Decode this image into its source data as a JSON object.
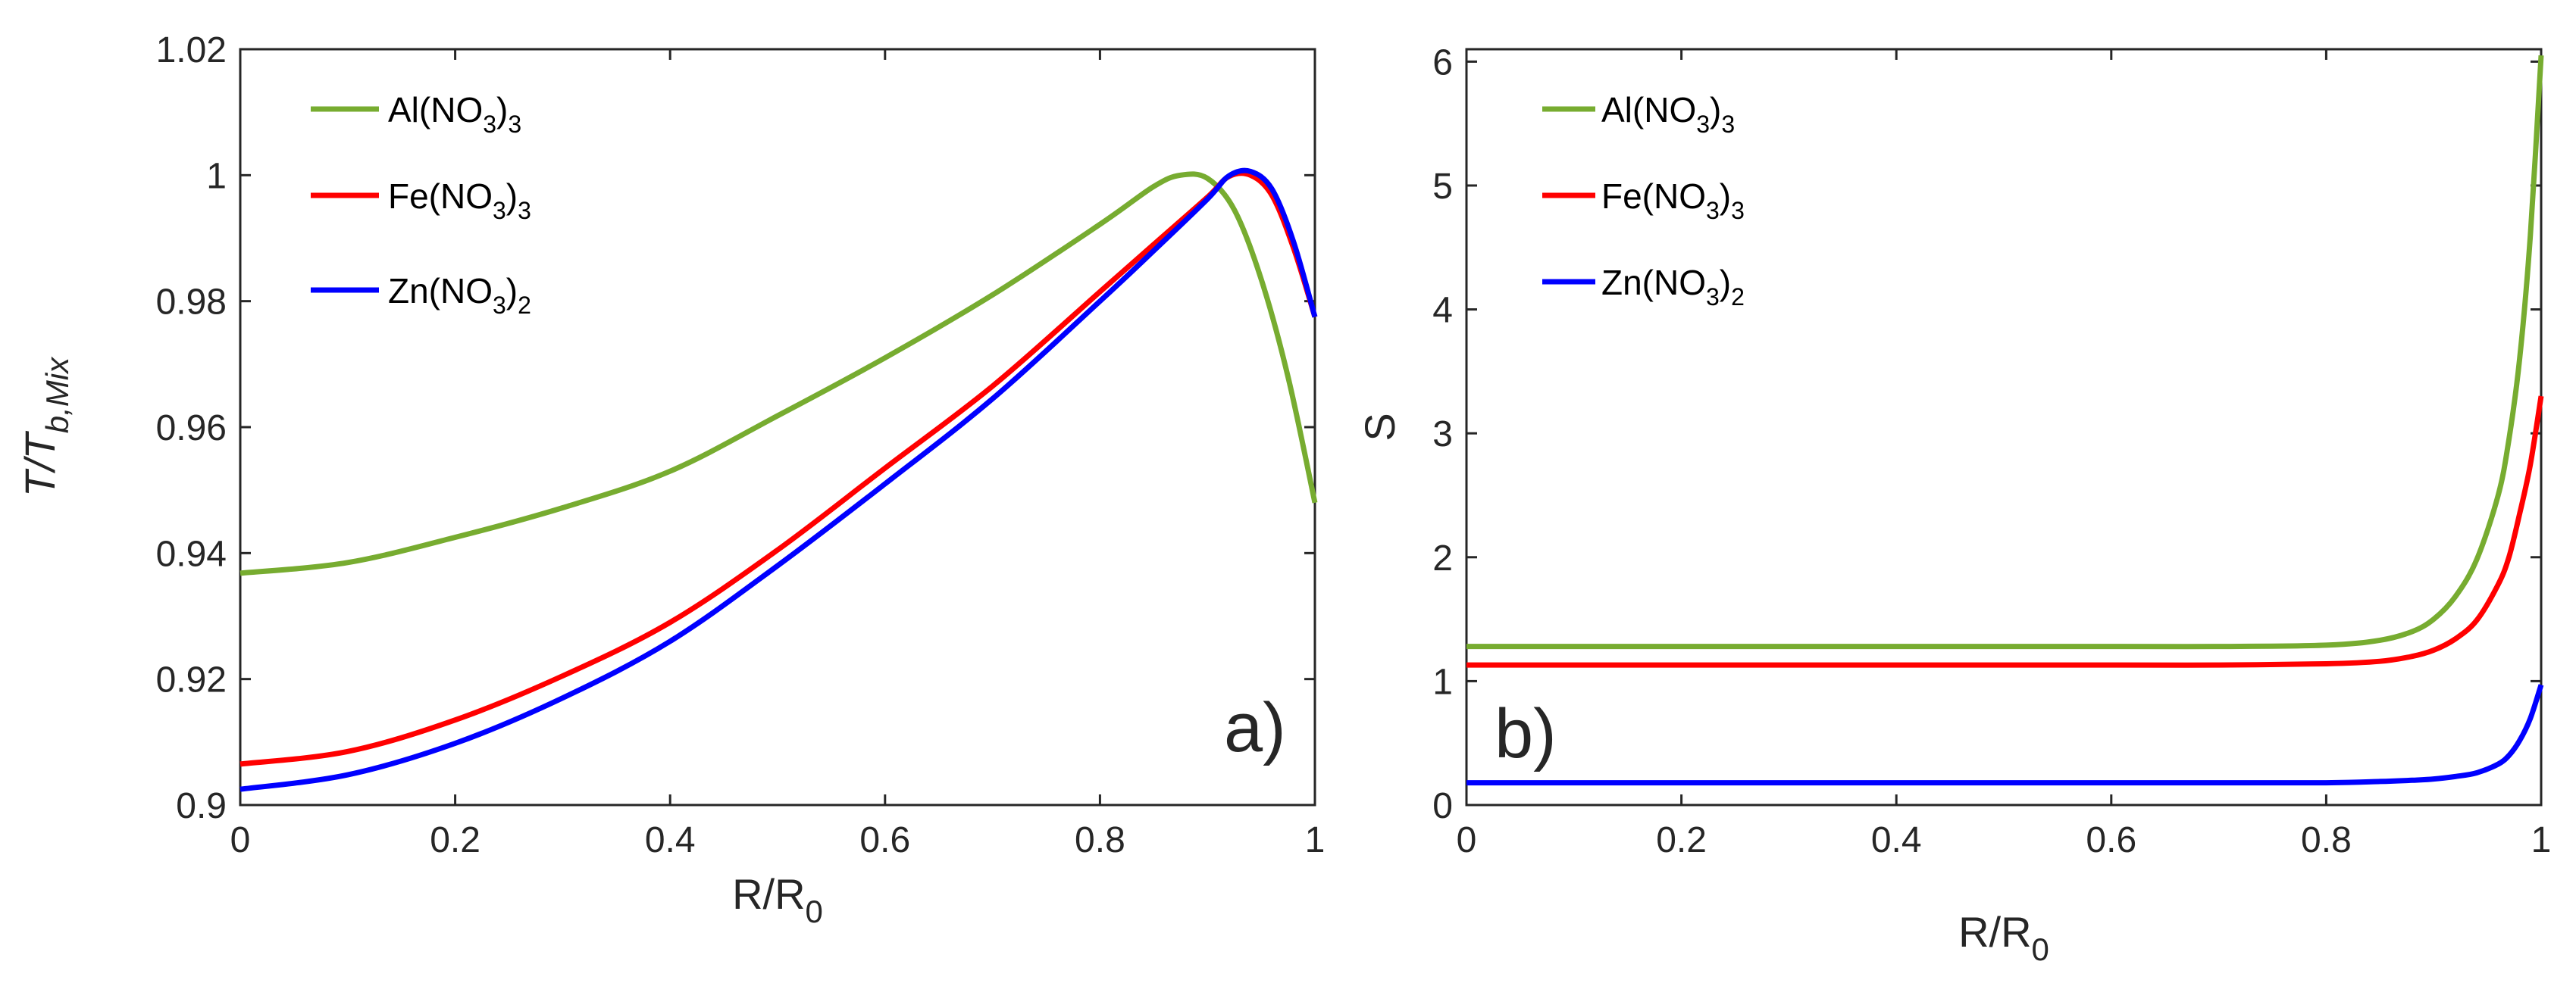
{
  "legend_subscripts": {
    "al": "3",
    "fe": "3",
    "zn": "2"
  },
  "chart_data": [
    {
      "type": "line",
      "panel_label": "a)",
      "xlabel": {
        "main": "R/R",
        "sub": "0"
      },
      "ylabel": {
        "main": "T/T",
        "sub": "b,Mix"
      },
      "xlim": [
        0,
        1
      ],
      "ylim": [
        0.9,
        1.02
      ],
      "xticks": [
        0,
        0.2,
        0.4,
        0.6,
        0.8,
        1
      ],
      "xtick_labels": [
        "0",
        "0.2",
        "0.4",
        "0.6",
        "0.8",
        "1"
      ],
      "yticks": [
        0.9,
        0.92,
        0.94,
        0.96,
        0.98,
        1.0,
        1.02
      ],
      "ytick_labels": [
        "0.9",
        "0.92",
        "0.94",
        "0.96",
        "0.98",
        "1",
        "1.02"
      ],
      "legend": {
        "placement": "top-left",
        "entries": [
          {
            "label": "Al(NO3)3",
            "main": "Al(NO",
            "sub": "3",
            "tail": ")",
            "tailsub": "3",
            "color": "#77ac30"
          },
          {
            "label": "Fe(NO3)3",
            "main": "Fe(NO",
            "sub": "3",
            "tail": ")",
            "tailsub": "3",
            "color": "#ff0000"
          },
          {
            "label": "Zn(NO3)2",
            "main": "Zn(NO",
            "sub": "3",
            "tail": ")",
            "tailsub": "2",
            "color": "#0000ff"
          }
        ]
      },
      "series": [
        {
          "name": "Al(NO3)3",
          "color": "#77ac30",
          "x": [
            0,
            0.1,
            0.2,
            0.3,
            0.4,
            0.5,
            0.6,
            0.7,
            0.8,
            0.85,
            0.875,
            0.9,
            0.925,
            0.95,
            0.975,
            1.0
          ],
          "y": [
            0.9368,
            0.9385,
            0.9425,
            0.9472,
            0.953,
            0.9618,
            0.971,
            0.981,
            0.9922,
            0.9982,
            1.0,
            0.9995,
            0.9945,
            0.9835,
            0.968,
            0.948
          ]
        },
        {
          "name": "Fe(NO3)3",
          "color": "#ff0000",
          "x": [
            0,
            0.1,
            0.2,
            0.3,
            0.4,
            0.5,
            0.6,
            0.7,
            0.8,
            0.85,
            0.9,
            0.92,
            0.94,
            0.96,
            0.98,
            1.0
          ],
          "y": [
            0.9065,
            0.9085,
            0.9135,
            0.9205,
            0.929,
            0.9405,
            0.9535,
            0.9665,
            0.9815,
            0.989,
            0.9965,
            0.9998,
            1.0,
            0.9968,
            0.9885,
            0.9775
          ]
        },
        {
          "name": "Zn(NO3)2",
          "color": "#0000ff",
          "x": [
            0,
            0.1,
            0.2,
            0.3,
            0.4,
            0.5,
            0.6,
            0.7,
            0.8,
            0.85,
            0.9,
            0.92,
            0.94,
            0.96,
            0.98,
            1.0
          ],
          "y": [
            0.9025,
            0.9048,
            0.9098,
            0.917,
            0.926,
            0.938,
            0.951,
            0.9645,
            0.98,
            0.988,
            0.9962,
            0.9999,
            1.0006,
            0.9978,
            0.9895,
            0.9775
          ]
        }
      ]
    },
    {
      "type": "line",
      "panel_label": "b)",
      "xlabel": {
        "main": "R/R",
        "sub": "0"
      },
      "ylabel": {
        "main": "S",
        "sub": ""
      },
      "xlim": [
        0,
        1
      ],
      "ylim": [
        0,
        6.1
      ],
      "xticks": [
        0,
        0.2,
        0.4,
        0.6,
        0.8,
        1
      ],
      "xtick_labels": [
        "0",
        "0.2",
        "0.4",
        "0.6",
        "0.8",
        "1"
      ],
      "yticks": [
        0,
        1,
        2,
        3,
        4,
        5,
        6
      ],
      "ytick_labels": [
        "0",
        "1",
        "2",
        "3",
        "4",
        "5",
        "6"
      ],
      "legend": {
        "placement": "top-left",
        "entries": [
          {
            "label": "Al(NO3)3",
            "main": "Al(NO",
            "sub": "3",
            "tail": ")",
            "tailsub": "3",
            "color": "#77ac30"
          },
          {
            "label": "Fe(NO3)3",
            "main": "Fe(NO",
            "sub": "3",
            "tail": ")",
            "tailsub": "3",
            "color": "#ff0000"
          },
          {
            "label": "Zn(NO3)2",
            "main": "Zn(NO",
            "sub": "3",
            "tail": ")",
            "tailsub": "2",
            "color": "#0000ff"
          }
        ]
      },
      "series": [
        {
          "name": "Al(NO3)3",
          "color": "#77ac30",
          "x": [
            0,
            0.2,
            0.4,
            0.6,
            0.7,
            0.8,
            0.85,
            0.88,
            0.9,
            0.92,
            0.94,
            0.96,
            0.97,
            0.98,
            0.99,
            1.0
          ],
          "y": [
            1.28,
            1.28,
            1.28,
            1.28,
            1.28,
            1.29,
            1.33,
            1.4,
            1.5,
            1.68,
            1.98,
            2.5,
            2.95,
            3.6,
            4.6,
            6.05
          ]
        },
        {
          "name": "Fe(NO3)3",
          "color": "#ff0000",
          "x": [
            0,
            0.2,
            0.4,
            0.6,
            0.7,
            0.8,
            0.85,
            0.88,
            0.9,
            0.92,
            0.94,
            0.96,
            0.97,
            0.98,
            0.99,
            1.0
          ],
          "y": [
            1.13,
            1.13,
            1.13,
            1.13,
            1.13,
            1.14,
            1.16,
            1.2,
            1.25,
            1.34,
            1.49,
            1.78,
            2.0,
            2.35,
            2.75,
            3.3
          ]
        },
        {
          "name": "Zn(NO3)2",
          "color": "#0000ff",
          "x": [
            0,
            0.2,
            0.4,
            0.6,
            0.7,
            0.8,
            0.85,
            0.88,
            0.9,
            0.92,
            0.94,
            0.96,
            0.97,
            0.98,
            0.99,
            1.0
          ],
          "y": [
            0.18,
            0.18,
            0.18,
            0.18,
            0.18,
            0.18,
            0.19,
            0.2,
            0.21,
            0.23,
            0.26,
            0.33,
            0.4,
            0.52,
            0.7,
            0.97
          ]
        }
      ]
    }
  ]
}
